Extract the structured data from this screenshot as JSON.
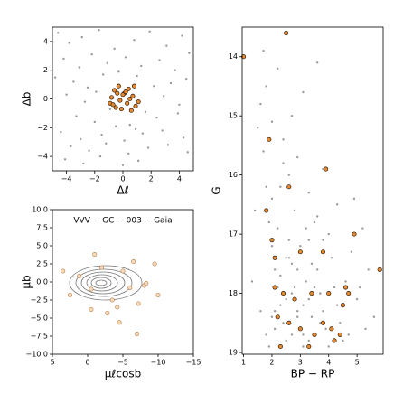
{
  "chart_data": [
    {
      "type": "scatter",
      "xlabel": "Δℓ",
      "ylabel": "Δb",
      "xlim": [
        -5,
        5
      ],
      "ylim": [
        -5,
        5
      ],
      "xticks": [
        {
          "value": -4,
          "label": "−4"
        },
        {
          "value": -2,
          "label": "−2"
        },
        0,
        2,
        4
      ],
      "yticks": [
        {
          "value": -4,
          "label": "−4"
        },
        {
          "value": -2,
          "label": "−2"
        },
        0,
        2,
        4
      ],
      "series": [
        {
          "color": "#9a9a9a",
          "x": [
            -4.6,
            -3.8,
            -2.9,
            -1.7,
            -0.6,
            0.8,
            1.9,
            3.1,
            4.2,
            4.7,
            -4.2,
            -3.1,
            -2.2,
            -1.1,
            0.2,
            1.3,
            2.6,
            3.7,
            -4.8,
            -3.5,
            -2.5,
            -1.4,
            -0.3,
            1.0,
            2.2,
            3.4,
            4.5,
            -4.0,
            -2.7,
            -1.9,
            -0.9,
            0.5,
            1.6,
            2.9,
            4.0,
            -3.3,
            -2.0,
            -0.5,
            0.9,
            2.4,
            3.9,
            -4.4,
            -3.0,
            -1.5,
            0.1,
            1.4,
            2.8,
            4.3,
            -3.7,
            -2.4,
            -1.2,
            0.4,
            1.8,
            3.2,
            4.6,
            -4.1,
            -2.8,
            -1.6,
            0.0,
            1.1
          ],
          "values": [
            4.6,
            3.9,
            4.3,
            4.8,
            3.5,
            4.1,
            4.7,
            3.7,
            4.4,
            3.2,
            2.8,
            2.2,
            3.1,
            2.5,
            2.9,
            2.3,
            2.7,
            2.0,
            1.5,
            1.2,
            0.8,
            1.7,
            1.9,
            1.6,
            0.9,
            1.1,
            1.4,
            0.3,
            -0.2,
            0.5,
            -0.7,
            -1.8,
            -0.9,
            0.2,
            -0.4,
            -1.2,
            -1.6,
            -1.9,
            -2.1,
            -1.3,
            -1.0,
            -2.3,
            -2.8,
            -2.5,
            -2.9,
            -2.4,
            -2.2,
            -2.7,
            -3.3,
            -3.6,
            -3.1,
            -3.8,
            -3.4,
            -3.2,
            -3.7,
            -4.2,
            -4.5,
            -4.0,
            -4.6,
            -4.3
          ]
        },
        {
          "color": "#e8892f",
          "edgecolor": "#2a1a0a",
          "x": [
            -0.6,
            -0.3,
            0.1,
            0.4,
            0.7,
            -0.8,
            -0.2,
            0.3,
            0.9,
            -0.5,
            0.0,
            0.5,
            -0.9,
            -0.1,
            0.6,
            1.1,
            -0.4,
            0.2,
            -0.7,
            0.8
          ],
          "values": [
            0.6,
            0.9,
            0.4,
            0.7,
            0.2,
            0.1,
            -0.1,
            -0.3,
            -0.5,
            -0.6,
            0.3,
            0.0,
            -0.3,
            -0.7,
            -0.8,
            -0.2,
            0.4,
            0.5,
            -0.4,
            0.9
          ]
        }
      ]
    },
    {
      "type": "scatter",
      "xlabel": "μℓcosb",
      "ylabel": "μb",
      "annotation": "VVV − GC − 003  −  Gaia",
      "xlim": [
        5,
        -15
      ],
      "ylim": [
        -10,
        10
      ],
      "xticks": [
        5,
        0,
        {
          "value": -5,
          "label": "−5"
        },
        {
          "value": -10,
          "label": "−10"
        },
        {
          "value": -15,
          "label": "−15"
        }
      ],
      "yticks": [
        {
          "value": -10,
          "label": "−10.0"
        },
        {
          "value": -7.5,
          "label": "−7.5"
        },
        {
          "value": -5,
          "label": "−5.0"
        },
        {
          "value": -2.5,
          "label": "−2.5"
        },
        {
          "value": 0,
          "label": "0.0"
        },
        {
          "value": 2.5,
          "label": "2.5"
        },
        {
          "value": 5,
          "label": "5.0"
        },
        {
          "value": 7.5,
          "label": "7.5"
        },
        {
          "value": 10,
          "label": "10.0"
        }
      ],
      "series": [
        {
          "color": "#f5dcc0",
          "edgecolor": "#c08850",
          "x": [
            1.2,
            -0.5,
            -2.0,
            -3.5,
            -5.0,
            -6.5,
            -8.0,
            2.5,
            -1.0,
            -4.2,
            -7.2,
            -9.5,
            -6.0,
            3.5,
            -2.8,
            -10.0,
            -4.5,
            -0.5,
            -7.0,
            -8.3
          ],
          "values": [
            0.8,
            -1.0,
            2.0,
            -2.5,
            1.5,
            2.8,
            -0.5,
            -1.8,
            3.8,
            -3.5,
            -3.0,
            2.5,
            -0.8,
            1.5,
            -4.3,
            -1.8,
            -5.6,
            -3.8,
            -7.2,
            -0.2
          ]
        }
      ]
    },
    {
      "type": "scatter",
      "xlabel": "BP − RP",
      "ylabel": "G",
      "y_inverted": true,
      "xlim": [
        0.95,
        5.92
      ],
      "ylim": [
        13.5,
        19.03
      ],
      "xticks": [
        1,
        2,
        3,
        4,
        5
      ],
      "yticks": [
        14,
        15,
        16,
        17,
        18,
        19
      ],
      "series": [
        {
          "color": "#9a9a9a",
          "x": [
            1.6,
            1.7,
            1.8,
            1.9,
            2.0,
            2.1,
            2.2,
            2.3,
            2.4,
            2.5,
            2.6,
            2.7,
            2.8,
            2.9,
            3.0,
            3.1,
            3.2,
            3.3,
            3.4,
            3.5,
            3.6,
            3.7,
            3.8,
            3.9,
            4.0,
            4.1,
            4.2,
            4.3,
            4.4,
            4.5,
            1.9,
            2.1,
            2.3,
            2.5,
            2.7,
            2.9,
            3.1,
            3.3,
            3.5,
            3.7,
            2.0,
            2.2,
            2.4,
            2.6,
            2.8,
            3.0,
            3.2,
            3.4,
            3.6,
            3.8,
            1.7,
            1.8,
            2.0,
            2.2,
            2.4,
            2.6,
            2.9,
            3.3,
            3.8,
            4.3,
            4.6,
            4.8,
            5.0,
            5.2,
            5.4,
            5.6,
            4.7,
            4.9,
            5.1,
            5.3,
            1.5,
            1.4,
            1.3,
            1.6,
            1.8,
            2.0,
            2.3,
            2.7,
            3.1,
            3.6,
            2.1,
            2.3,
            2.5,
            2.7,
            2.9,
            3.1,
            3.3,
            3.5,
            3.7,
            4.0
          ],
          "values": [
            14.8,
            15.6,
            16.2,
            16.8,
            17.2,
            17.6,
            17.9,
            18.2,
            18.5,
            18.8,
            17.1,
            17.5,
            17.9,
            18.3,
            18.6,
            18.9,
            17.8,
            18.1,
            18.4,
            18.7,
            17.6,
            18.0,
            18.3,
            18.6,
            18.9,
            17.4,
            17.9,
            18.2,
            18.5,
            18.8,
            18.9,
            18.6,
            18.9,
            18.1,
            18.7,
            17.6,
            18.2,
            18.8,
            17.9,
            18.5,
            16.4,
            16.9,
            15.8,
            17.4,
            16.6,
            17.2,
            16.9,
            17.5,
            16.7,
            17.1,
            13.9,
            14.5,
            15.1,
            14.2,
            15.4,
            16.0,
            15.7,
            16.3,
            15.9,
            16.5,
            17.8,
            17.3,
            18.1,
            16.9,
            17.6,
            18.4,
            18.7,
            16.4,
            17.9,
            18.6,
            15.2,
            16.6,
            17.8,
            18.3,
            18.7,
            18.4,
            16.2,
            15.0,
            14.6,
            14.1,
            18.3,
            17.7,
            17.4,
            18.0,
            18.4,
            18.7,
            17.1,
            16.8,
            18.0,
            17.0
          ]
        },
        {
          "color": "#e8892f",
          "edgecolor": "#2a1a0a",
          "x": [
            1.0,
            2.5,
            1.9,
            2.6,
            3.9,
            4.9,
            1.8,
            2.0,
            2.1,
            5.8,
            3.0,
            3.8,
            2.1,
            2.4,
            2.8,
            3.4,
            4.0,
            4.6,
            4.7,
            4.5,
            2.2,
            2.6,
            3.0,
            3.5,
            3.8,
            4.2,
            4.4,
            2.3,
            3.3,
            4.1
          ],
          "values": [
            14.0,
            13.6,
            15.4,
            16.2,
            15.9,
            17.0,
            16.6,
            17.1,
            17.4,
            17.6,
            17.3,
            17.3,
            17.9,
            18.0,
            18.1,
            18.0,
            18.0,
            17.9,
            18.0,
            18.2,
            18.4,
            18.5,
            18.6,
            18.7,
            18.5,
            18.8,
            18.7,
            18.9,
            18.9,
            18.6
          ]
        }
      ]
    }
  ]
}
